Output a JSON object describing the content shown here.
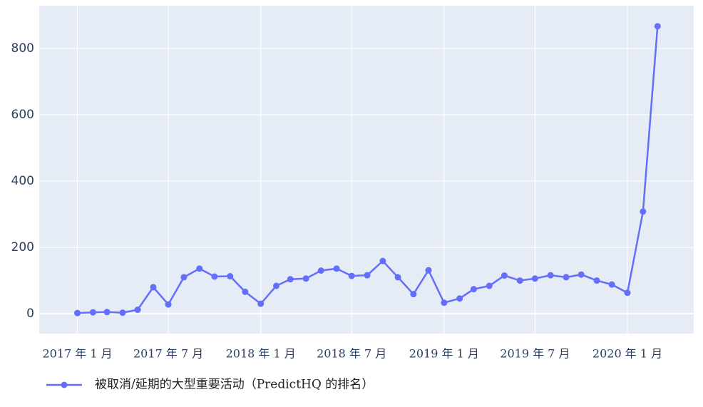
{
  "chart_data": {
    "type": "line",
    "x": [
      "2017-01",
      "2017-02",
      "2017-03",
      "2017-04",
      "2017-05",
      "2017-06",
      "2017-07",
      "2017-08",
      "2017-09",
      "2017-10",
      "2017-11",
      "2017-12",
      "2018-01",
      "2018-02",
      "2018-03",
      "2018-04",
      "2018-05",
      "2018-06",
      "2018-07",
      "2018-08",
      "2018-09",
      "2018-10",
      "2018-11",
      "2018-12",
      "2019-01",
      "2019-02",
      "2019-03",
      "2019-04",
      "2019-05",
      "2019-06",
      "2019-07",
      "2019-08",
      "2019-09",
      "2019-10",
      "2019-11",
      "2019-12",
      "2020-01",
      "2020-02",
      "2020-03"
    ],
    "series": [
      {
        "name": "被取消/延期的大型重要活动（PredictHQ 的排名）",
        "color": "#636efa",
        "values": [
          2,
          4,
          5,
          3,
          12,
          80,
          28,
          110,
          136,
          112,
          113,
          66,
          30,
          84,
          104,
          106,
          130,
          136,
          114,
          116,
          159,
          110,
          59,
          131,
          33,
          46,
          74,
          84,
          115,
          100,
          106,
          116,
          110,
          118,
          100,
          88,
          63,
          308,
          867
        ]
      }
    ],
    "xlim": [
      "2016-10-17",
      "2020-05-12"
    ],
    "xticks": [
      {
        "value": "2017-01",
        "label": "2017 年 1 月"
      },
      {
        "value": "2017-07",
        "label": "2017 年 7 月"
      },
      {
        "value": "2018-01",
        "label": "2018 年 1 月"
      },
      {
        "value": "2018-07",
        "label": "2018 年 7 月"
      },
      {
        "value": "2019-01",
        "label": "2019 年 1 月"
      },
      {
        "value": "2019-07",
        "label": "2019 年 7 月"
      },
      {
        "value": "2020-01",
        "label": "2020 年 1 月"
      }
    ],
    "ylim": [
      -60,
      929
    ],
    "yticks": [
      0,
      200,
      400,
      600,
      800
    ],
    "grid": true,
    "legend": "bottom"
  }
}
